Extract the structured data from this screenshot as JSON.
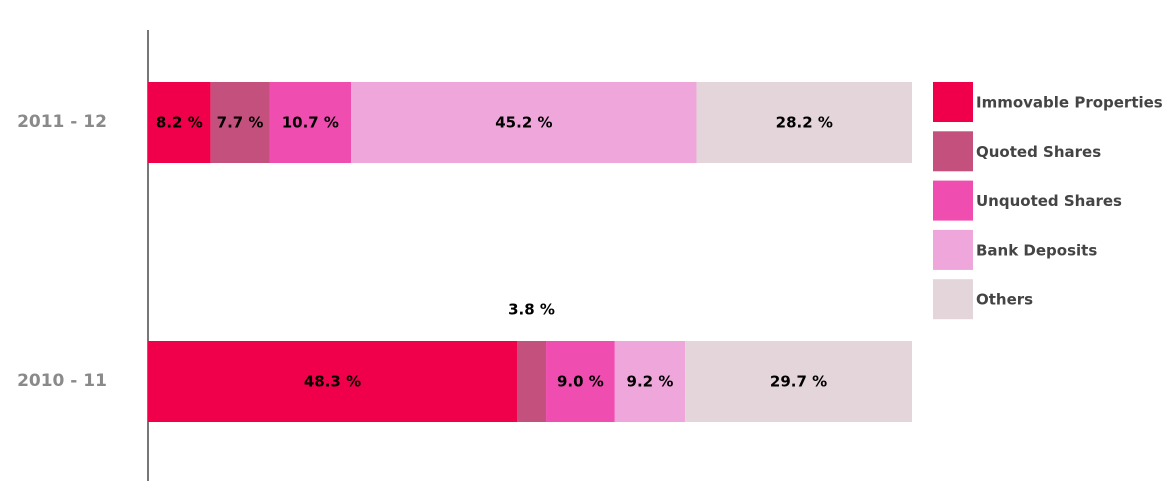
{
  "chart_data": {
    "type": "stacked-bar-horizontal",
    "categories": [
      "2011 - 12",
      "2010 - 11"
    ],
    "series": [
      {
        "name": "Immovable Properties",
        "color": "#f0004a",
        "values": [
          8.2,
          48.3
        ],
        "value_labels": [
          "8.2 %",
          "48.3 %"
        ]
      },
      {
        "name": "Quoted Shares",
        "color": "#c4507e",
        "values": [
          7.7,
          3.8
        ],
        "value_labels": [
          "7.7 %",
          "3.8 %"
        ]
      },
      {
        "name": "Unquoted Shares",
        "color": "#f04db0",
        "values": [
          10.7,
          9.0
        ],
        "value_labels": [
          "10.7 %",
          "9.0 %"
        ]
      },
      {
        "name": "Bank Deposits",
        "color": "#eea6db",
        "values": [
          45.2,
          9.2
        ],
        "value_labels": [
          "45.2 %",
          "9.2 %"
        ]
      },
      {
        "name": "Others",
        "color": "#e3d5da",
        "values": [
          28.2,
          29.7
        ],
        "value_labels": [
          "28.2 %",
          "29.7 %"
        ]
      }
    ],
    "legend": "right"
  }
}
